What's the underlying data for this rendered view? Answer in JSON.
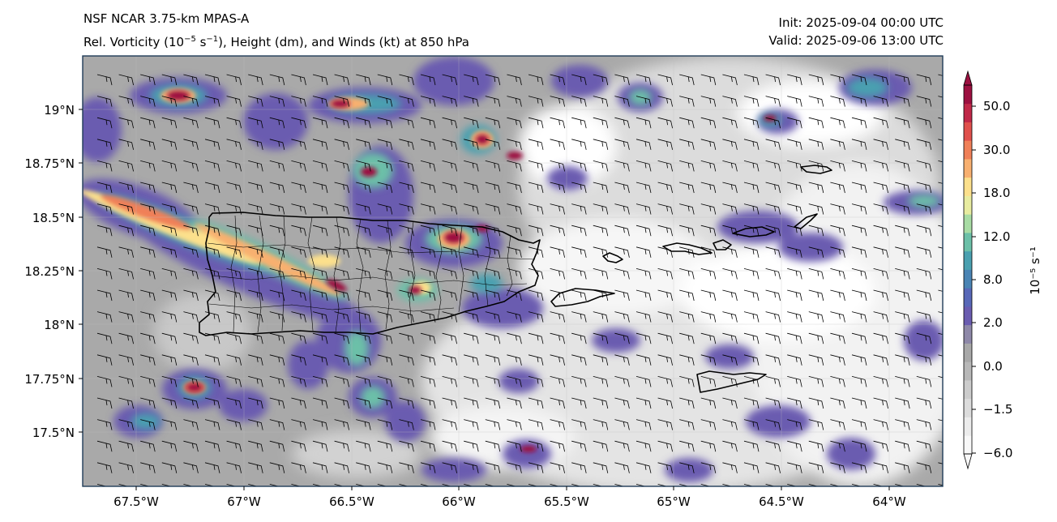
{
  "header": {
    "model": "NSF NCAR 3.75-km MPAS-A",
    "field_prefix": "Rel. Vorticity (10",
    "field_exp1": "−5",
    "field_mid": " s",
    "field_exp2": "−1",
    "field_suffix": "), Height (dm), and Winds (kt) at 850 hPa",
    "init": "Init: 2025-09-04 00:00 UTC",
    "valid": "Valid: 2025-09-06 13:00 UTC"
  },
  "map": {
    "region": "Puerto Rico and Virgin Islands",
    "lon_labels": [
      "67.5°W",
      "67°W",
      "66.5°W",
      "66°W",
      "65.5°W",
      "65°W",
      "64.5°W",
      "64°W"
    ],
    "lat_labels": [
      "19°N",
      "18.75°N",
      "18.5°N",
      "18.25°N",
      "18°N",
      "17.75°N",
      "17.5°N"
    ],
    "lon_range": [
      -67.75,
      -63.75
    ],
    "lat_range": [
      17.25,
      19.25
    ]
  },
  "colorbar": {
    "label": "10⁻⁵ s⁻¹",
    "tick_labels": [
      "50.0",
      "30.0",
      "18.0",
      "12.0",
      "8.0",
      "2.0",
      "0.0",
      "−1.5",
      "−6.0"
    ],
    "colors": [
      "#f8f8f8",
      "#ececec",
      "#dcdcdc",
      "#cccccc",
      "#b8b8b8",
      "#a8a8a8",
      "#8e88a8",
      "#6a5cb0",
      "#5868b8",
      "#4a84b4",
      "#4aa0b0",
      "#6cc0a8",
      "#a8dca4",
      "#e8eca0",
      "#fce08c",
      "#f8b070",
      "#f08058",
      "#e0504c",
      "#c02848",
      "#9c1040"
    ],
    "extend": "both"
  }
}
